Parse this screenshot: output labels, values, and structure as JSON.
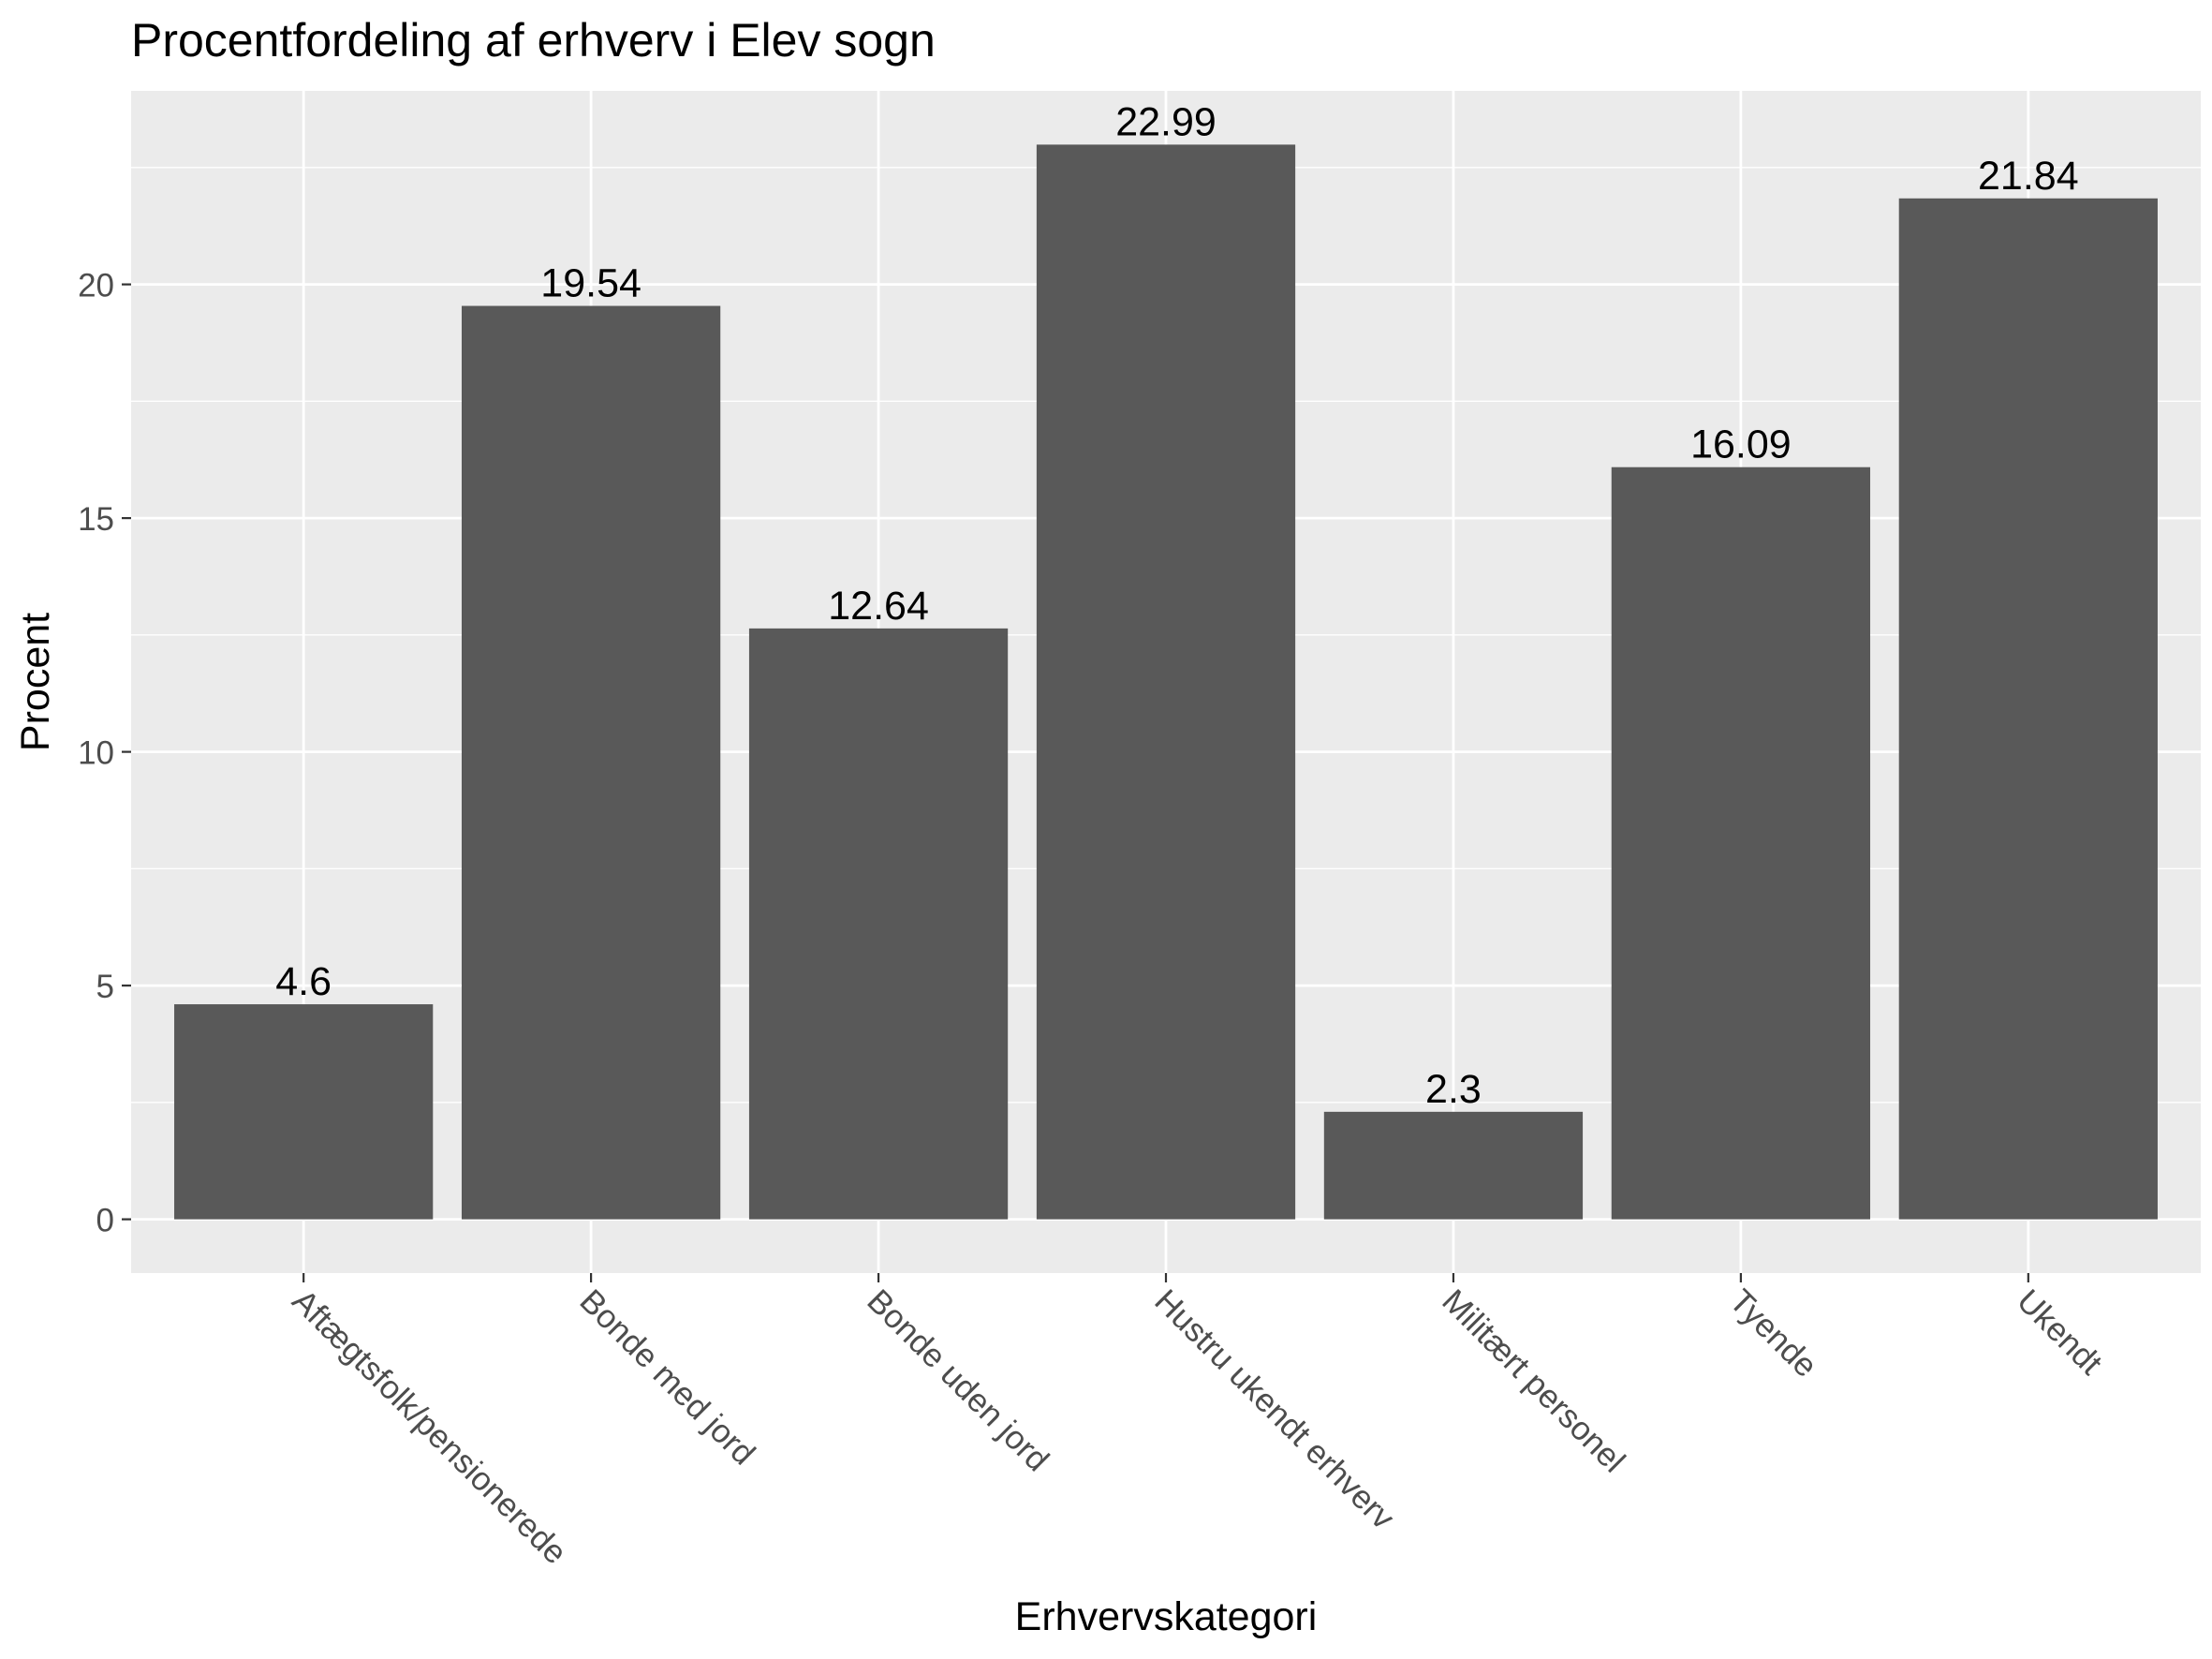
{
  "chart_data": {
    "type": "bar",
    "title": "Procentfordeling af erhverv i Elev sogn",
    "xlabel": "Erhvervskategori",
    "ylabel": "Procent",
    "categories": [
      "Aftægtsfolk/pensionerede",
      "Bonde med jord",
      "Bonde uden jord",
      "Hustru ukendt erhverv",
      "Militært personel",
      "Tyende",
      "Ukendt"
    ],
    "values": [
      4.6,
      19.54,
      12.64,
      22.99,
      2.3,
      16.09,
      21.84
    ],
    "data_labels": [
      "4.6",
      "19.54",
      "12.64",
      "22.99",
      "2.3",
      "16.09",
      "21.84"
    ],
    "ylim": [
      -1.15,
      24.14
    ],
    "y_ticks": [
      0,
      5,
      10,
      15,
      20
    ],
    "y_tick_labels": [
      "0",
      "5",
      "10",
      "15",
      "20"
    ],
    "grid": true,
    "legend": "none",
    "colors": {
      "bar": "#595959",
      "panel_background": "#ebebeb",
      "grid": "#ffffff",
      "text": "#000000",
      "tick_text": "#4d4d4d",
      "tick_mark": "#333333"
    }
  }
}
